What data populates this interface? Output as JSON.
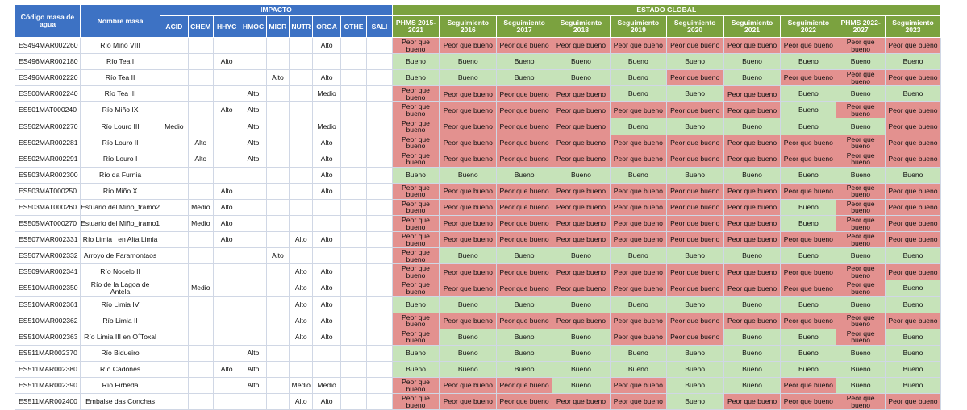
{
  "headers": {
    "codigo": "Código masa de agua",
    "nombre": "Nombre masa",
    "impacto": "IMPACTO",
    "estado": "ESTADO GLOBAL",
    "impacto_cols": [
      "ACID",
      "CHEM",
      "HHYC",
      "HMOC",
      "MICR",
      "NUTR",
      "ORGA",
      "OTHE",
      "SALI"
    ],
    "estado_cols": [
      "PHMS 2015-2021",
      "Seguimiento 2016",
      "Seguimiento 2017",
      "Seguimiento 2018",
      "Seguimiento 2019",
      "Seguimiento 2020",
      "Seguimiento 2021",
      "Seguimiento 2022",
      "PHMS 2022-2027",
      "Seguimiento 2023"
    ]
  },
  "colors": {
    "header_blue": "#3d72c4",
    "header_green": "#7ba23f",
    "peor": "#e3918f",
    "bueno": "#c6e3b9"
  },
  "rows": [
    {
      "code": "ES494MAR002260",
      "name": "Río Miño VIII",
      "imp": [
        "",
        "",
        "",
        "",
        "",
        "",
        "Alto",
        "",
        ""
      ],
      "est": [
        "P",
        "P",
        "P",
        "P",
        "P",
        "P",
        "P",
        "P",
        "P",
        "P"
      ]
    },
    {
      "code": "ES496MAR002180",
      "name": "Río Tea I",
      "imp": [
        "",
        "",
        "Alto",
        "",
        "",
        "",
        "",
        "",
        ""
      ],
      "est": [
        "B",
        "B",
        "B",
        "B",
        "B",
        "B",
        "B",
        "B",
        "B",
        "B"
      ]
    },
    {
      "code": "ES496MAR002220",
      "name": "Río Tea II",
      "imp": [
        "",
        "",
        "",
        "",
        "Alto",
        "",
        "Alto",
        "",
        ""
      ],
      "est": [
        "B",
        "B",
        "B",
        "B",
        "B",
        "P",
        "B",
        "P",
        "P",
        "P"
      ]
    },
    {
      "code": "ES500MAR002240",
      "name": "Río Tea III",
      "imp": [
        "",
        "",
        "",
        "Alto",
        "",
        "",
        "Medio",
        "",
        ""
      ],
      "est": [
        "P",
        "P",
        "P",
        "P",
        "B",
        "B",
        "P",
        "B",
        "B",
        "B"
      ]
    },
    {
      "code": "ES501MAT000240",
      "name": "Río Miño IX",
      "imp": [
        "",
        "",
        "Alto",
        "Alto",
        "",
        "",
        "",
        "",
        ""
      ],
      "est": [
        "P",
        "P",
        "P",
        "P",
        "P",
        "P",
        "P",
        "B",
        "P",
        "P"
      ]
    },
    {
      "code": "ES502MAR002270",
      "name": "Río Louro III",
      "imp": [
        "Medio",
        "",
        "",
        "Alto",
        "",
        "",
        "Medio",
        "",
        ""
      ],
      "est": [
        "P",
        "P",
        "P",
        "P",
        "B",
        "B",
        "B",
        "B",
        "B",
        "P"
      ]
    },
    {
      "code": "ES502MAR002281",
      "name": "Río Louro II",
      "imp": [
        "",
        "Alto",
        "",
        "Alto",
        "",
        "",
        "Alto",
        "",
        ""
      ],
      "est": [
        "P",
        "P",
        "P",
        "P",
        "P",
        "P",
        "P",
        "P",
        "P",
        "P"
      ]
    },
    {
      "code": "ES502MAR002291",
      "name": "Río Louro I",
      "imp": [
        "",
        "Alto",
        "",
        "Alto",
        "",
        "",
        "Alto",
        "",
        ""
      ],
      "est": [
        "P",
        "P",
        "P",
        "P",
        "P",
        "P",
        "P",
        "P",
        "P",
        "P"
      ]
    },
    {
      "code": "ES503MAR002300",
      "name": "Río da Furnia",
      "imp": [
        "",
        "",
        "",
        "",
        "",
        "",
        "Alto",
        "",
        ""
      ],
      "est": [
        "B",
        "B",
        "B",
        "B",
        "B",
        "B",
        "B",
        "B",
        "B",
        "B"
      ]
    },
    {
      "code": "ES503MAT000250",
      "name": "Río Miño X",
      "imp": [
        "",
        "",
        "Alto",
        "",
        "",
        "",
        "Alto",
        "",
        ""
      ],
      "est": [
        "P",
        "P",
        "P",
        "P",
        "P",
        "P",
        "P",
        "P",
        "P",
        "P"
      ]
    },
    {
      "code": "ES503MAT000260",
      "name": "Estuario del Miño_tramo2",
      "imp": [
        "",
        "Medio",
        "Alto",
        "",
        "",
        "",
        "",
        "",
        ""
      ],
      "est": [
        "P",
        "P",
        "P",
        "P",
        "P",
        "P",
        "P",
        "B",
        "P",
        "P"
      ]
    },
    {
      "code": "ES505MAT000270",
      "name": "Estuario del Miño_tramo1",
      "imp": [
        "",
        "Medio",
        "Alto",
        "",
        "",
        "",
        "",
        "",
        ""
      ],
      "est": [
        "P",
        "P",
        "P",
        "P",
        "P",
        "P",
        "P",
        "B",
        "P",
        "P"
      ]
    },
    {
      "code": "ES507MAR002331",
      "name": "Río Limia I en Alta Limia",
      "imp": [
        "",
        "",
        "Alto",
        "",
        "",
        "Alto",
        "Alto",
        "",
        ""
      ],
      "est": [
        "P",
        "P",
        "P",
        "P",
        "P",
        "P",
        "P",
        "P",
        "P",
        "P"
      ]
    },
    {
      "code": "ES507MAR002332",
      "name": "Arroyo de Faramontaos",
      "imp": [
        "",
        "",
        "",
        "",
        "Alto",
        "",
        "",
        "",
        ""
      ],
      "est": [
        "P",
        "B",
        "B",
        "B",
        "B",
        "B",
        "B",
        "B",
        "B",
        "B"
      ]
    },
    {
      "code": "ES509MAR002341",
      "name": "Río Nocelo II",
      "imp": [
        "",
        "",
        "",
        "",
        "",
        "Alto",
        "Alto",
        "",
        ""
      ],
      "est": [
        "P",
        "P",
        "P",
        "P",
        "P",
        "P",
        "P",
        "P",
        "P",
        "P"
      ]
    },
    {
      "code": "ES510MAR002350",
      "name": "Río de la Lagoa de Antela",
      "imp": [
        "",
        "Medio",
        "",
        "",
        "",
        "Alto",
        "Alto",
        "",
        ""
      ],
      "est": [
        "P",
        "P",
        "P",
        "P",
        "P",
        "P",
        "P",
        "P",
        "P",
        "B"
      ]
    },
    {
      "code": "ES510MAR002361",
      "name": "Río Limia IV",
      "imp": [
        "",
        "",
        "",
        "",
        "",
        "Alto",
        "Alto",
        "",
        ""
      ],
      "est": [
        "B",
        "B",
        "B",
        "B",
        "B",
        "B",
        "B",
        "B",
        "B",
        "B"
      ]
    },
    {
      "code": "ES510MAR002362",
      "name": "Río Limia II",
      "imp": [
        "",
        "",
        "",
        "",
        "",
        "Alto",
        "Alto",
        "",
        ""
      ],
      "est": [
        "P",
        "P",
        "P",
        "P",
        "P",
        "P",
        "P",
        "P",
        "P",
        "P"
      ]
    },
    {
      "code": "ES510MAR002363",
      "name": "Río Limia III en O´Toxal",
      "imp": [
        "",
        "",
        "",
        "",
        "",
        "Alto",
        "Alto",
        "",
        ""
      ],
      "est": [
        "P",
        "B",
        "B",
        "B",
        "P",
        "P",
        "B",
        "B",
        "P",
        "B"
      ]
    },
    {
      "code": "ES511MAR002370",
      "name": "Río Bidueiro",
      "imp": [
        "",
        "",
        "",
        "Alto",
        "",
        "",
        "",
        "",
        ""
      ],
      "est": [
        "B",
        "B",
        "B",
        "B",
        "B",
        "B",
        "B",
        "B",
        "B",
        "B"
      ]
    },
    {
      "code": "ES511MAR002380",
      "name": "Río Cadones",
      "imp": [
        "",
        "",
        "Alto",
        "Alto",
        "",
        "",
        "",
        "",
        ""
      ],
      "est": [
        "B",
        "B",
        "B",
        "B",
        "B",
        "B",
        "B",
        "B",
        "B",
        "B"
      ]
    },
    {
      "code": "ES511MAR002390",
      "name": "Río Firbeda",
      "imp": [
        "",
        "",
        "",
        "Alto",
        "",
        "Medio",
        "Medio",
        "",
        ""
      ],
      "est": [
        "P",
        "P",
        "P",
        "B",
        "P",
        "B",
        "B",
        "P",
        "B",
        "B"
      ]
    },
    {
      "code": "ES511MAR002400",
      "name": "Embalse das Conchas",
      "imp": [
        "",
        "",
        "",
        "",
        "",
        "Alto",
        "Alto",
        "",
        ""
      ],
      "est": [
        "P",
        "P",
        "P",
        "P",
        "P",
        "B",
        "P",
        "P",
        "P",
        "P"
      ]
    }
  ],
  "labels": {
    "P": "Peor que bueno",
    "B": "Bueno"
  }
}
